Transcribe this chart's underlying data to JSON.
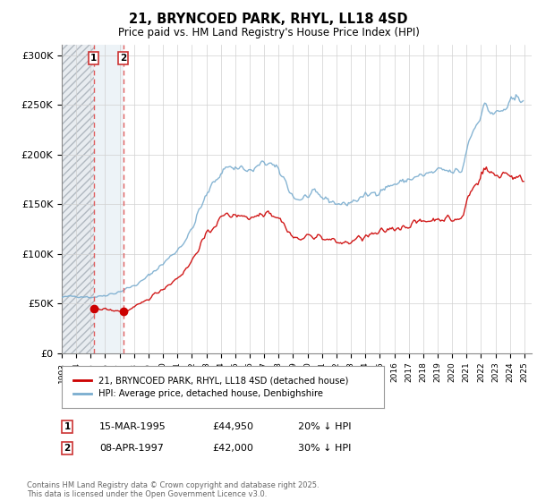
{
  "title": "21, BRYNCOED PARK, RHYL, LL18 4SD",
  "subtitle": "Price paid vs. HM Land Registry's House Price Index (HPI)",
  "legend_line1": "21, BRYNCOED PARK, RHYL, LL18 4SD (detached house)",
  "legend_line2": "HPI: Average price, detached house, Denbighshire",
  "annotation1_date": "15-MAR-1995",
  "annotation1_price": "£44,950",
  "annotation1_hpi": "20% ↓ HPI",
  "annotation2_date": "08-APR-1997",
  "annotation2_price": "£42,000",
  "annotation2_hpi": "30% ↓ HPI",
  "footer": "Contains HM Land Registry data © Crown copyright and database right 2025.\nThis data is licensed under the Open Government Licence v3.0.",
  "red_color": "#cc0000",
  "blue_color": "#7aadcf",
  "hatch_color": "#d0d8e0",
  "light_blue_fill": "#dce8f0",
  "dashed_line_color": "#e06060",
  "ylim_max": 310000,
  "yticks": [
    0,
    50000,
    100000,
    150000,
    200000,
    250000,
    300000
  ],
  "ytick_labels": [
    "£0",
    "£50K",
    "£100K",
    "£150K",
    "£200K",
    "£250K",
    "£300K"
  ],
  "sale1_x": 1995.21,
  "sale1_y": 44950,
  "sale2_x": 1997.27,
  "sale2_y": 42000,
  "xmin": 1993.0,
  "xmax": 2025.5
}
